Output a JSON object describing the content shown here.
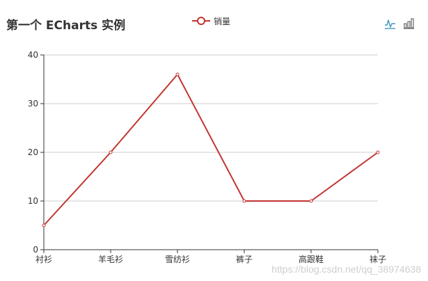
{
  "title": "第一个 ECharts 实例",
  "legend": {
    "label": "销量"
  },
  "toolbox": {
    "line_icon": "line-chart-icon",
    "bar_icon": "bar-chart-icon"
  },
  "colors": {
    "series": "#c23531",
    "axis": "#333333",
    "grid": "#cccccc",
    "text": "#333333"
  },
  "watermark": "https://blog.csdn.net/qq_38974638",
  "chart_data": {
    "type": "line",
    "title": "第一个 ECharts 实例",
    "categories": [
      "衬衫",
      "羊毛衫",
      "雪纺衫",
      "裤子",
      "高跟鞋",
      "袜子"
    ],
    "series": [
      {
        "name": "销量",
        "values": [
          5,
          20,
          36,
          10,
          10,
          20
        ]
      }
    ],
    "ylim": [
      0,
      40
    ],
    "yticks": [
      0,
      10,
      20,
      30,
      40
    ],
    "grid": true,
    "legend_position": "top-center"
  }
}
